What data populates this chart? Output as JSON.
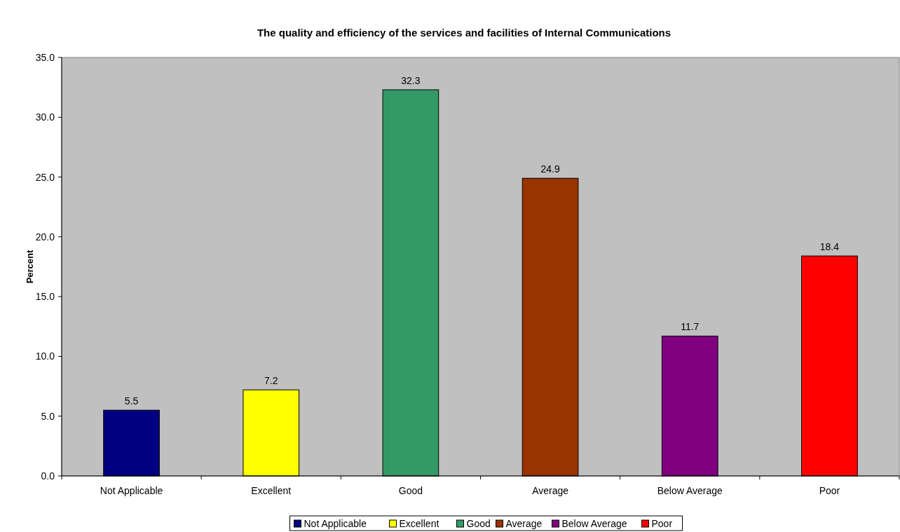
{
  "chart_data": {
    "type": "bar",
    "title": "The quality and efficiency of the services and facilities of Internal Communications",
    "ylabel": "Percent",
    "categories": [
      "Not Applicable",
      "Excellent",
      "Good",
      "Average",
      "Below Average",
      "Poor"
    ],
    "series": [
      {
        "name": "Not Applicable",
        "color": "#000080",
        "values": [
          5.5,
          null,
          null,
          null,
          null,
          null
        ]
      },
      {
        "name": "Excellent",
        "color": "#ffff00",
        "values": [
          null,
          7.2,
          null,
          null,
          null,
          null
        ]
      },
      {
        "name": "Good",
        "color": "#339966",
        "values": [
          null,
          null,
          32.3,
          null,
          null,
          null
        ]
      },
      {
        "name": "Average",
        "color": "#993300",
        "values": [
          null,
          null,
          null,
          24.9,
          null,
          null
        ]
      },
      {
        "name": "Below Average",
        "color": "#800080",
        "values": [
          null,
          null,
          null,
          null,
          11.7,
          null
        ]
      },
      {
        "name": "Poor",
        "color": "#ff0000",
        "values": [
          null,
          null,
          null,
          null,
          null,
          18.4
        ]
      }
    ],
    "stacked": true,
    "ylim": [
      0,
      35
    ],
    "yticks": [
      {
        "value": 0,
        "label": "0.0"
      },
      {
        "value": 5,
        "label": "5.0"
      },
      {
        "value": 10,
        "label": "10.0"
      },
      {
        "value": 15,
        "label": "15.0"
      },
      {
        "value": 20,
        "label": "20.0"
      },
      {
        "value": 25,
        "label": "25.0"
      },
      {
        "value": 30,
        "label": "30.0"
      },
      {
        "value": 35,
        "label": "35.0"
      }
    ],
    "data_labels": true,
    "legend": "bottom",
    "grid": false
  }
}
